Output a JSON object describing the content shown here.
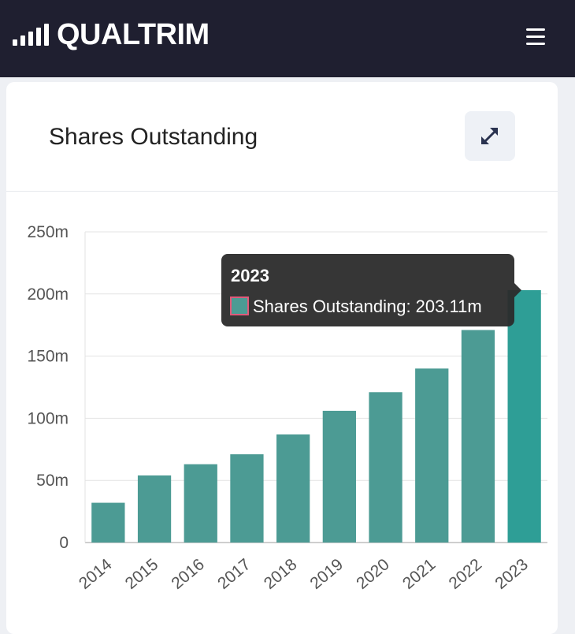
{
  "header": {
    "logo_text": "QUALTRIM",
    "logo_icon": "signal-bars-icon",
    "menu_icon": "hamburger-menu-icon"
  },
  "card": {
    "title": "Shares Outstanding",
    "expand_icon": "expand-arrows-icon"
  },
  "tooltip": {
    "title": "2023",
    "label": "Shares Outstanding: 203.11m"
  },
  "colors": {
    "bar": "#4c9b94",
    "bar_highlight": "#2e9e96",
    "header_bg": "#1f1f30"
  },
  "chart_data": {
    "type": "bar",
    "title": "Shares Outstanding",
    "categories": [
      "2014",
      "2015",
      "2016",
      "2017",
      "2018",
      "2019",
      "2020",
      "2021",
      "2022",
      "2023"
    ],
    "series": [
      {
        "name": "Shares Outstanding",
        "values": [
          32,
          54,
          63,
          71,
          87,
          106,
          121,
          140,
          171,
          203.11
        ]
      }
    ],
    "ylim": [
      0,
      250
    ],
    "yticks": [
      0,
      50,
      100,
      150,
      200,
      250
    ],
    "ytick_labels": [
      "0",
      "50m",
      "100m",
      "150m",
      "200m",
      "250m"
    ],
    "grid": true,
    "legend": "none"
  }
}
